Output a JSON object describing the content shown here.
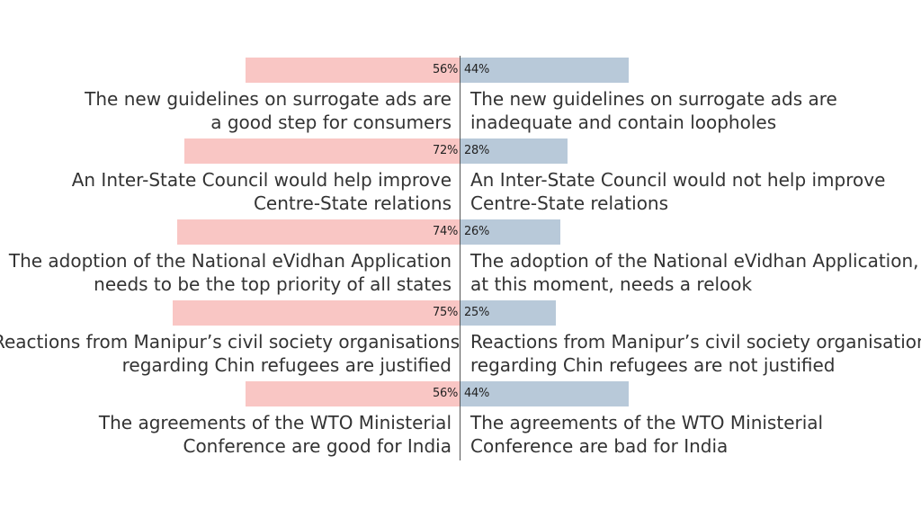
{
  "chart_data": {
    "type": "bar",
    "colors": {
      "agree": "#f9c6c4",
      "disagree": "#b8c9d9"
    },
    "rows": [
      {
        "left_value": 56,
        "right_value": 44,
        "left_label": "56%",
        "right_label": "44%",
        "left_lines": [
          "The new guidelines on surrogate ads are",
          "a good step for consumers"
        ],
        "right_lines": [
          "The new guidelines on surrogate ads are",
          "inadequate and contain loopholes"
        ]
      },
      {
        "left_value": 72,
        "right_value": 28,
        "left_label": "72%",
        "right_label": "28%",
        "left_lines": [
          "An Inter-State Council would help improve",
          "Centre-State relations"
        ],
        "right_lines": [
          "An Inter-State Council would not help improve",
          "Centre-State relations"
        ]
      },
      {
        "left_value": 74,
        "right_value": 26,
        "left_label": "74%",
        "right_label": "26%",
        "left_lines": [
          "The adoption of the National eVidhan Application",
          "needs to be the top priority of all states"
        ],
        "right_lines": [
          "The adoption of the National eVidhan Application,",
          "at this moment, needs a relook"
        ]
      },
      {
        "left_value": 75,
        "right_value": 25,
        "left_label": "75%",
        "right_label": "25%",
        "left_lines": [
          "Reactions from Manipur’s civil society organisations",
          "regarding Chin refugees are justified"
        ],
        "right_lines": [
          "Reactions from Manipur’s civil society organisations",
          "regarding Chin refugees are not justified"
        ]
      },
      {
        "left_value": 56,
        "right_value": 44,
        "left_label": "56%",
        "right_label": "44%",
        "left_lines": [
          "The agreements of the WTO Ministerial",
          "Conference are good for India"
        ],
        "right_lines": [
          "The agreements of the WTO Ministerial",
          "Conference are bad for India"
        ]
      }
    ]
  }
}
